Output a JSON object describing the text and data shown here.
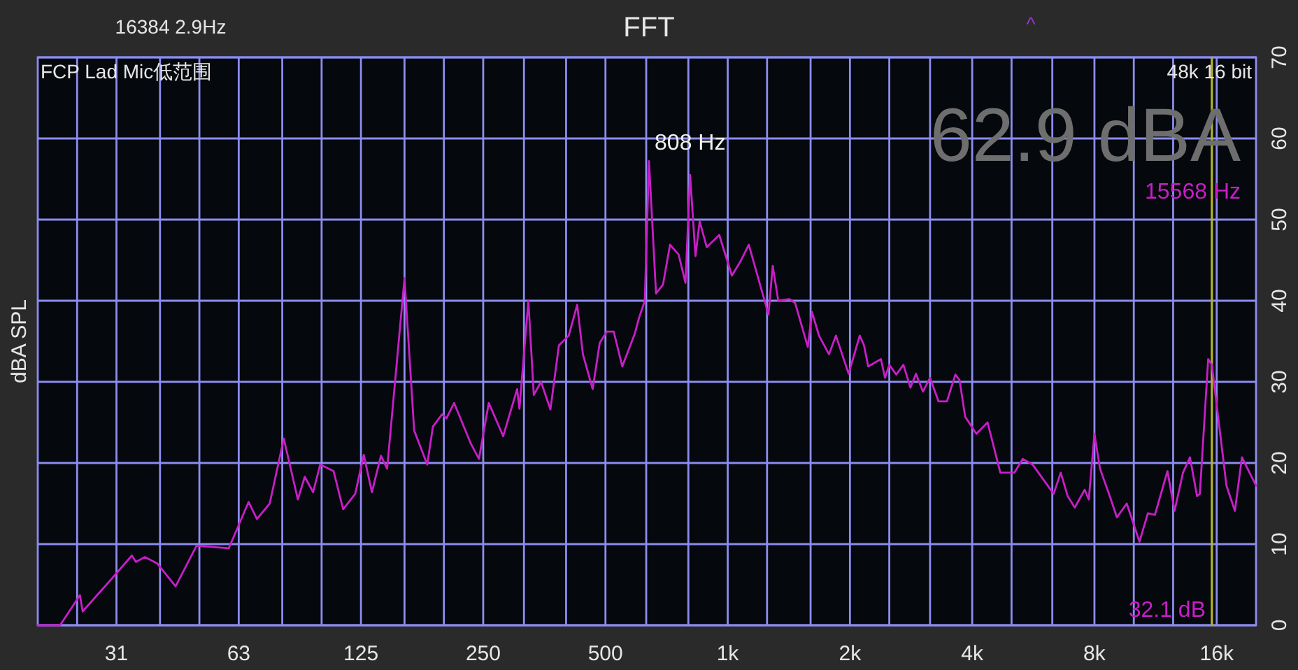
{
  "chart_data": {
    "type": "line",
    "title": "FFT",
    "ylabel": "dBA SPL",
    "annotations": [
      "16384  2.9Hz",
      "FCP Lad Mic低范围",
      "48k 16 bit",
      "62.9 dBA",
      "^",
      "32.1 dB",
      {
        "text": "808 Hz",
        "x": 808,
        "y": 55.5
      }
    ],
    "log": "x",
    "grid": true,
    "xlim": [
      20,
      20000
    ],
    "ylim": [
      0,
      70
    ],
    "xticks": [
      {
        "value": 25,
        "label": null
      },
      {
        "value": 31.25,
        "label": "31"
      },
      {
        "value": 40,
        "label": null
      },
      {
        "value": 50,
        "label": null
      },
      {
        "value": 62.5,
        "label": "63"
      },
      {
        "value": 80,
        "label": null
      },
      {
        "value": 100,
        "label": null
      },
      125,
      {
        "value": 160,
        "label": null
      },
      {
        "value": 200,
        "label": null
      },
      250,
      {
        "value": 315,
        "label": null
      },
      {
        "value": 400,
        "label": null
      },
      500,
      {
        "value": 630,
        "label": null
      },
      {
        "value": 800,
        "label": null
      },
      {
        "value": 1000,
        "label": "1k"
      },
      {
        "value": 1250,
        "label": null
      },
      {
        "value": 1600,
        "label": null
      },
      {
        "value": 2000,
        "label": "2k"
      },
      {
        "value": 2500,
        "label": null
      },
      {
        "value": 3150,
        "label": null
      },
      {
        "value": 4000,
        "label": "4k"
      },
      {
        "value": 5000,
        "label": null
      },
      {
        "value": 6300,
        "label": null
      },
      {
        "value": 8000,
        "label": "8k"
      },
      {
        "value": 10000,
        "label": null
      },
      {
        "value": 12500,
        "label": null
      },
      {
        "value": 16000,
        "label": "16k"
      }
    ],
    "yticks": [
      0,
      10,
      20,
      30,
      40,
      50,
      60,
      70
    ],
    "ref_lines": [
      {
        "axis": "x",
        "value": 15568,
        "label": "15568 Hz",
        "color": "#b4b428"
      }
    ],
    "series": [
      {
        "color": "#c81ec8",
        "x": [
          20,
          22.7,
          25.4,
          25.8,
          30.5,
          34.1,
          34.9,
          36.7,
          39.4,
          43.7,
          49.2,
          59.1,
          66.1,
          69.3,
          74.5,
          80.7,
          87.4,
          90.9,
          95.3,
          99.2,
          107,
          113,
          121,
          127,
          133,
          140,
          145,
          160,
          169,
          182,
          188,
          198,
          203,
          212,
          233,
          244,
          258,
          280,
          303,
          307,
          323,
          333,
          347,
          366,
          384,
          406,
          426,
          440,
          465,
          484,
          504,
          524,
          550,
          591,
          605,
          625,
          640,
          666,
          693,
          721,
          757,
          787,
          808,
          833,
          853,
          888,
          953,
          1024,
          1074,
          1127,
          1260,
          1291,
          1332,
          1420,
          1466,
          1575,
          1613,
          1678,
          1776,
          1847,
          1985,
          2114,
          2166,
          2218,
          2384,
          2440,
          2500,
          2600,
          2708,
          2818,
          2908,
          3026,
          3150,
          3304,
          3466,
          3636,
          3724,
          3844,
          4096,
          4364,
          4692,
          5080,
          5328,
          5636,
          6348,
          6608,
          6876,
          7156,
          7568,
          7748,
          8000,
          8256,
          8728,
          9088,
          9608,
          10328,
          10832,
          11272,
          12104,
          12600,
          13216,
          13752,
          14312,
          14544,
          15248,
          15568,
          16912,
          17744,
          18464,
          20000
        ],
        "values": [
          0,
          0,
          3.7,
          1.7,
          5.8,
          8.6,
          7.8,
          8.4,
          7.6,
          4.8,
          9.8,
          9.5,
          15.2,
          13.1,
          15.0,
          23,
          15.5,
          18.3,
          16.4,
          19.8,
          19,
          14.3,
          16.2,
          21,
          16.4,
          20.9,
          19.3,
          42.8,
          24,
          19.8,
          24.5,
          26,
          25.5,
          27.4,
          22.4,
          20.5,
          27.4,
          23.3,
          29.1,
          26.7,
          40,
          28.4,
          30,
          26.6,
          34.5,
          35.7,
          39.5,
          33.4,
          29.1,
          34.8,
          36.2,
          36.2,
          31.9,
          36,
          37.9,
          40,
          57.2,
          40.9,
          42,
          46.9,
          45.7,
          42.2,
          55.5,
          45.5,
          49.8,
          46.6,
          48.1,
          43.1,
          44.8,
          46.9,
          38.3,
          44.3,
          40,
          40.2,
          39.7,
          34.3,
          38.6,
          35.7,
          33.4,
          35.7,
          31,
          35.7,
          34.5,
          31.9,
          32.8,
          30.5,
          32.1,
          30.9,
          32.1,
          29.3,
          31,
          28.8,
          30.5,
          27.6,
          27.6,
          30.9,
          30.2,
          25.7,
          23.6,
          25,
          18.8,
          18.8,
          20.5,
          19.8,
          16.2,
          18.8,
          15.9,
          14.5,
          16.7,
          15.5,
          23.6,
          19.3,
          15.9,
          13.3,
          15,
          10.3,
          13.8,
          13.6,
          19,
          14.1,
          18.8,
          20.7,
          15.9,
          16.2,
          32.8,
          32.1,
          17.2,
          14.1,
          20.7,
          17.2
        ]
      }
    ]
  }
}
